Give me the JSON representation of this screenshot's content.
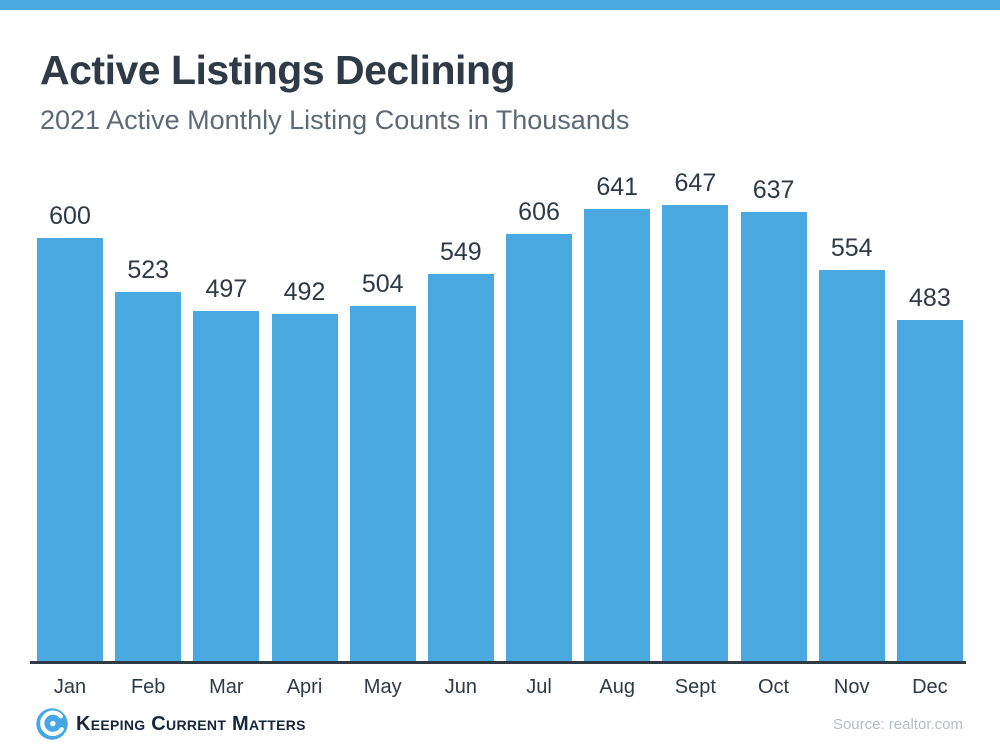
{
  "page": {
    "accent_color": "#4BA9E2",
    "axis_color": "#2E3A45"
  },
  "header": {
    "title": "Active Listings Declining",
    "subtitle": "2021 Active Monthly Listing Counts in Thousands"
  },
  "chart_data": {
    "type": "bar",
    "title": "Active Listings Declining",
    "subtitle": "2021 Active Monthly Listing Counts in Thousands",
    "categories": [
      "Jan",
      "Feb",
      "Mar",
      "Apri",
      "May",
      "Jun",
      "Jul",
      "Aug",
      "Sept",
      "Oct",
      "Nov",
      "Dec"
    ],
    "values": [
      600,
      523,
      497,
      492,
      504,
      549,
      606,
      641,
      647,
      637,
      554,
      483
    ],
    "bar_color": "#4BA9E2",
    "value_labels_shown": true,
    "xlabel": "",
    "ylabel": "",
    "ylim": [
      0,
      700
    ],
    "grid": false,
    "legend": "none"
  },
  "footer": {
    "logo_text": "Keeping Current Matters",
    "source": "Source: realtor.com"
  }
}
